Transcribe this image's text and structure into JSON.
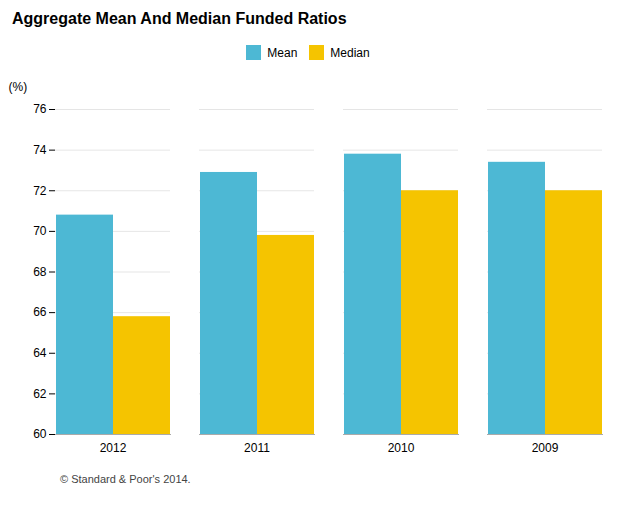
{
  "chart_data": {
    "type": "bar",
    "title": "Aggregate Mean And Median Funded Ratios",
    "categories": [
      "2012",
      "2011",
      "2010",
      "2009"
    ],
    "series": [
      {
        "name": "Mean",
        "color": "#4db8d4",
        "values": [
          70.8,
          72.9,
          73.8,
          73.4
        ]
      },
      {
        "name": "Median",
        "color": "#f5c400",
        "values": [
          65.8,
          69.8,
          72.0,
          72.0
        ]
      }
    ],
    "ylim": [
      60,
      76
    ],
    "yticks": [
      60,
      62,
      64,
      66,
      68,
      70,
      72,
      74,
      76
    ],
    "ylabel": "(%)",
    "grid": true,
    "legend": "top",
    "footnote": "© Standard & Poor's 2014."
  }
}
